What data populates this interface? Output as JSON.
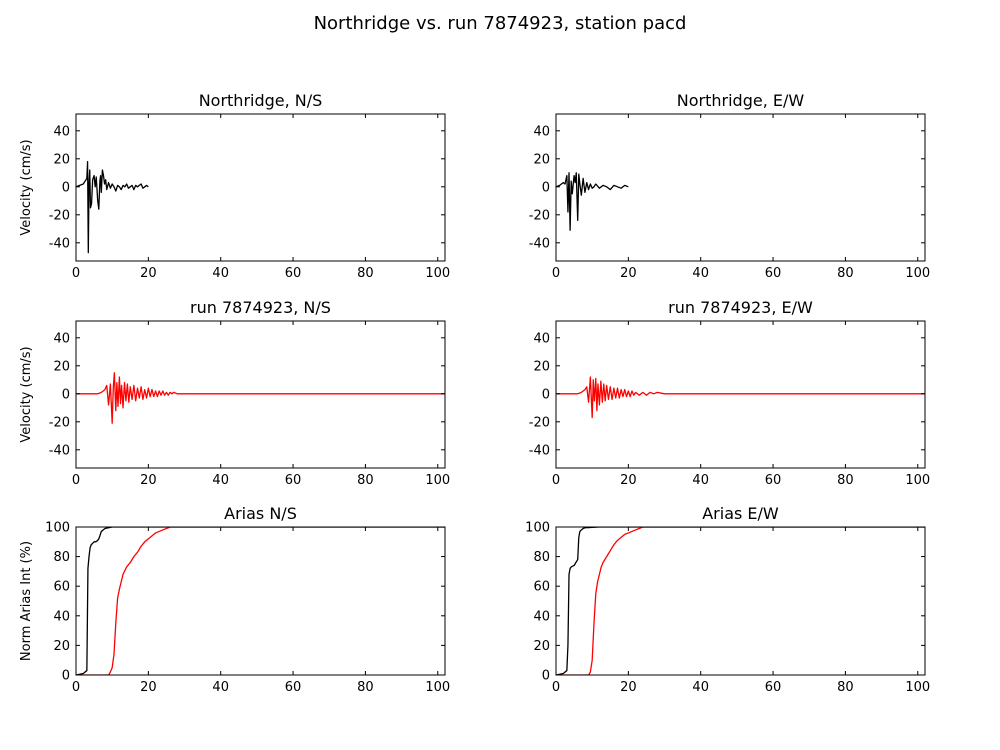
{
  "figure": {
    "title": "Northridge vs. run 7874923, station pacd"
  },
  "colors": {
    "observed": "#000000",
    "synthetic": "#ff0000",
    "background": "#ffffff",
    "axes": "#000000"
  },
  "chart_data": [
    {
      "type": "line",
      "title": "Northridge, N/S",
      "xlabel": "",
      "ylabel": "Velocity (cm/s)",
      "xlim": [
        0,
        102
      ],
      "ylim": [
        -53,
        52
      ],
      "xticks": [
        0,
        20,
        40,
        60,
        80,
        100
      ],
      "yticks": [
        -40,
        -20,
        0,
        20,
        40
      ],
      "grid": false,
      "series": [
        {
          "color": "#000000",
          "x": [
            0,
            1,
            2,
            2.5,
            3,
            3.2,
            3.4,
            3.6,
            3.8,
            4.0,
            4.3,
            4.6,
            5.0,
            5.3,
            5.6,
            6.0,
            6.3,
            6.6,
            6.8,
            7.0,
            7.3,
            7.6,
            7.9,
            8.2,
            8.5,
            9.0,
            9.5,
            10,
            10.5,
            11,
            11.5,
            12,
            12.5,
            13,
            13.5,
            14,
            14.5,
            15,
            15.5,
            16,
            16.5,
            17,
            17.5,
            18,
            18.5,
            19,
            19.5,
            20
          ],
          "y": [
            0,
            1,
            2,
            4,
            6,
            18,
            -47,
            3,
            12,
            -15,
            -12,
            5,
            8,
            0,
            7,
            -10,
            -16,
            4,
            8,
            -4,
            12,
            8,
            2,
            5,
            -2,
            3,
            -1,
            2,
            0,
            -3,
            1,
            0,
            -2,
            1,
            0,
            2,
            -1,
            0,
            1,
            -2,
            1,
            0,
            1,
            2,
            -1,
            0,
            1,
            0
          ]
        }
      ]
    },
    {
      "type": "line",
      "title": "Northridge, E/W",
      "xlabel": "",
      "ylabel": "",
      "xlim": [
        0,
        102
      ],
      "ylim": [
        -53,
        52
      ],
      "xticks": [
        0,
        20,
        40,
        60,
        80,
        100
      ],
      "yticks": [
        -40,
        -20,
        0,
        20,
        40
      ],
      "grid": false,
      "series": [
        {
          "color": "#000000",
          "x": [
            0,
            1,
            2,
            2.5,
            3,
            3.3,
            3.6,
            3.9,
            4.2,
            4.5,
            5.0,
            5.3,
            5.6,
            6.0,
            6.3,
            6.6,
            7.0,
            7.5,
            8.0,
            8.5,
            9.0,
            9.5,
            10,
            10.5,
            11,
            12,
            13,
            14,
            15,
            16,
            17,
            18,
            19,
            20
          ],
          "y": [
            0,
            1,
            3,
            2,
            8,
            -18,
            10,
            -31,
            4,
            -5,
            8,
            3,
            10,
            -24,
            9,
            2,
            -6,
            6,
            -4,
            3,
            -2,
            2,
            -1,
            0,
            2,
            -1,
            1,
            0,
            -2,
            1,
            0,
            -1,
            1,
            0
          ]
        }
      ]
    },
    {
      "type": "line",
      "title": "run 7874923, N/S",
      "xlabel": "",
      "ylabel": "Velocity (cm/s)",
      "xlim": [
        0,
        102
      ],
      "ylim": [
        -53,
        52
      ],
      "xticks": [
        0,
        20,
        40,
        60,
        80,
        100
      ],
      "yticks": [
        -40,
        -20,
        0,
        20,
        40
      ],
      "grid": false,
      "series": [
        {
          "color": "#ff0000",
          "x": [
            0,
            6,
            7,
            8,
            8.5,
            9,
            9.5,
            10,
            10.3,
            10.6,
            11,
            11.3,
            11.6,
            12,
            12.3,
            12.6,
            13,
            13.4,
            13.8,
            14.2,
            14.6,
            15,
            15.5,
            16,
            16.5,
            17,
            17.5,
            18,
            18.5,
            19,
            19.5,
            20,
            20.5,
            21,
            21.5,
            22,
            22.5,
            23,
            23.5,
            24,
            24.5,
            25,
            25.5,
            26,
            26.5,
            27,
            28,
            102
          ],
          "y": [
            0,
            0,
            1,
            3,
            6,
            -8,
            7,
            -21,
            4,
            15,
            -12,
            8,
            -9,
            12,
            -7,
            6,
            -10,
            8,
            -5,
            7,
            -6,
            5,
            -4,
            6,
            -5,
            4,
            -3,
            5,
            -4,
            3,
            -3,
            4,
            -2,
            3,
            -2,
            2,
            -2,
            2,
            -1,
            2,
            -1,
            1,
            -1,
            1,
            0,
            1,
            0,
            0
          ]
        }
      ]
    },
    {
      "type": "line",
      "title": "run 7874923, E/W",
      "xlabel": "",
      "ylabel": "",
      "xlim": [
        0,
        102
      ],
      "ylim": [
        -53,
        52
      ],
      "xticks": [
        0,
        20,
        40,
        60,
        80,
        100
      ],
      "yticks": [
        -40,
        -20,
        0,
        20,
        40
      ],
      "grid": false,
      "series": [
        {
          "color": "#ff0000",
          "x": [
            0,
            6,
            7,
            8,
            8.5,
            9,
            9.5,
            10,
            10.3,
            10.6,
            11,
            11.3,
            11.6,
            12,
            12.4,
            12.8,
            13.2,
            13.6,
            14,
            14.5,
            15,
            15.5,
            16,
            16.5,
            17,
            17.5,
            18,
            18.5,
            19,
            19.5,
            20,
            20.5,
            21,
            21.5,
            22,
            23,
            24,
            25,
            26,
            27,
            28,
            30,
            102
          ],
          "y": [
            0,
            0,
            1,
            3,
            5,
            -6,
            12,
            -17,
            10,
            -5,
            11,
            -12,
            7,
            -8,
            9,
            -6,
            7,
            -5,
            6,
            -4,
            5,
            -4,
            4,
            -3,
            4,
            -3,
            3,
            -2,
            3,
            -2,
            2,
            -2,
            2,
            -1,
            1,
            -1,
            1,
            -1,
            1,
            0,
            1,
            0,
            0
          ]
        }
      ]
    },
    {
      "type": "line",
      "title": "Arias N/S",
      "xlabel": "",
      "ylabel": "Norm Arias Int (%)",
      "xlim": [
        0,
        102
      ],
      "ylim": [
        0,
        100
      ],
      "xticks": [
        0,
        20,
        40,
        60,
        80,
        100
      ],
      "yticks": [
        0,
        20,
        40,
        60,
        80,
        100
      ],
      "grid": false,
      "series": [
        {
          "color": "#000000",
          "x": [
            0,
            2,
            3,
            3.3,
            3.6,
            3.9,
            4.2,
            4.6,
            5.0,
            5.5,
            6.0,
            6.3,
            6.6,
            7.0,
            7.5,
            8.0,
            9.0,
            10,
            12,
            15,
            20,
            102
          ],
          "y": [
            0,
            1,
            3,
            72,
            80,
            86,
            88,
            89,
            90,
            90,
            91,
            92,
            94,
            97,
            98,
            99,
            99.5,
            100,
            100,
            100,
            100,
            100
          ]
        },
        {
          "color": "#ff0000",
          "x": [
            0,
            9,
            9.5,
            10,
            10.5,
            11,
            11.5,
            12,
            12.5,
            13,
            14,
            15,
            16,
            17,
            18,
            19,
            20,
            21,
            22,
            23,
            24,
            25,
            26,
            102
          ],
          "y": [
            0,
            0,
            2,
            5,
            14,
            35,
            52,
            58,
            63,
            68,
            73,
            76,
            80,
            83,
            87,
            90,
            92,
            94,
            96,
            97,
            98,
            99,
            100,
            100
          ]
        }
      ]
    },
    {
      "type": "line",
      "title": "Arias E/W",
      "xlabel": "",
      "ylabel": "",
      "xlim": [
        0,
        102
      ],
      "ylim": [
        0,
        100
      ],
      "xticks": [
        0,
        20,
        40,
        60,
        80,
        100
      ],
      "yticks": [
        0,
        20,
        40,
        60,
        80,
        100
      ],
      "grid": false,
      "series": [
        {
          "color": "#000000",
          "x": [
            0,
            2,
            3,
            3.3,
            3.6,
            3.9,
            4.2,
            5.0,
            5.5,
            6.0,
            6.3,
            6.6,
            7.0,
            7.5,
            8,
            9,
            10,
            12,
            15,
            20,
            102
          ],
          "y": [
            0,
            1,
            3,
            20,
            68,
            72,
            73,
            74,
            76,
            78,
            93,
            97,
            98,
            99,
            99.5,
            99.6,
            99.8,
            100,
            100,
            100,
            100
          ]
        },
        {
          "color": "#ff0000",
          "x": [
            0,
            9,
            9.5,
            10,
            10.5,
            11,
            11.5,
            12,
            12.5,
            13,
            14,
            15,
            16,
            17,
            18,
            19,
            20,
            21,
            22,
            23,
            24,
            102
          ],
          "y": [
            0,
            0,
            2,
            10,
            35,
            55,
            63,
            68,
            73,
            76,
            80,
            84,
            88,
            91,
            93,
            95,
            96,
            97,
            98,
            99,
            100,
            100
          ]
        }
      ]
    }
  ]
}
